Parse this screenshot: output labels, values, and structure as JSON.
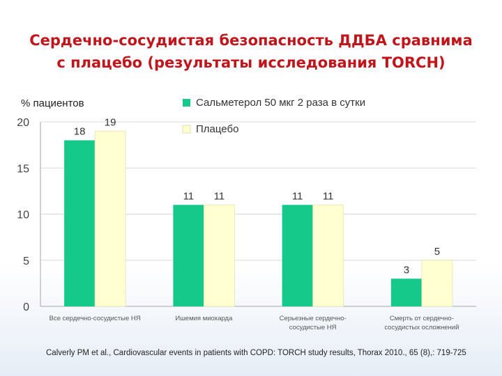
{
  "slide": {
    "title_line1": "Сердечно-сосудистая безопасность ДДБА сравнима",
    "title_line2": "с плацебо (результаты исследования TORCH)",
    "citation": "Calverly PM et al., Cardiovascular events in patients with COPD: TORCH study results, Thorax 2010., 65 (8),: 719-725"
  },
  "chart_data": {
    "type": "bar",
    "ylabel": "% пациентов",
    "ylim": [
      0,
      20
    ],
    "yticks": [
      0,
      5,
      10,
      15,
      20
    ],
    "grid": true,
    "legend_position": "top-right",
    "categories": [
      "Все сердечно-сосудистые НЯ",
      "Ишемия миокарда",
      "Серьезные сердечно-сосудистые НЯ",
      "Смерть от сердечно-сосудистых осложнений"
    ],
    "category_lines": [
      [
        "Все сердечно-сосудистые НЯ"
      ],
      [
        "Ишемия миокарда"
      ],
      [
        "Серьезные сердечно-",
        "сосудистые НЯ"
      ],
      [
        "Смерть от сердечно-",
        "сосудистых осложнений"
      ]
    ],
    "series": [
      {
        "name": "Сальметерол 50 мкг 2 раза в сутки",
        "color": "#14c98a",
        "values": [
          18,
          11,
          11,
          3
        ]
      },
      {
        "name": "Плацебо",
        "color": "#ffffd2",
        "values": [
          19,
          11,
          11,
          5
        ]
      }
    ]
  }
}
